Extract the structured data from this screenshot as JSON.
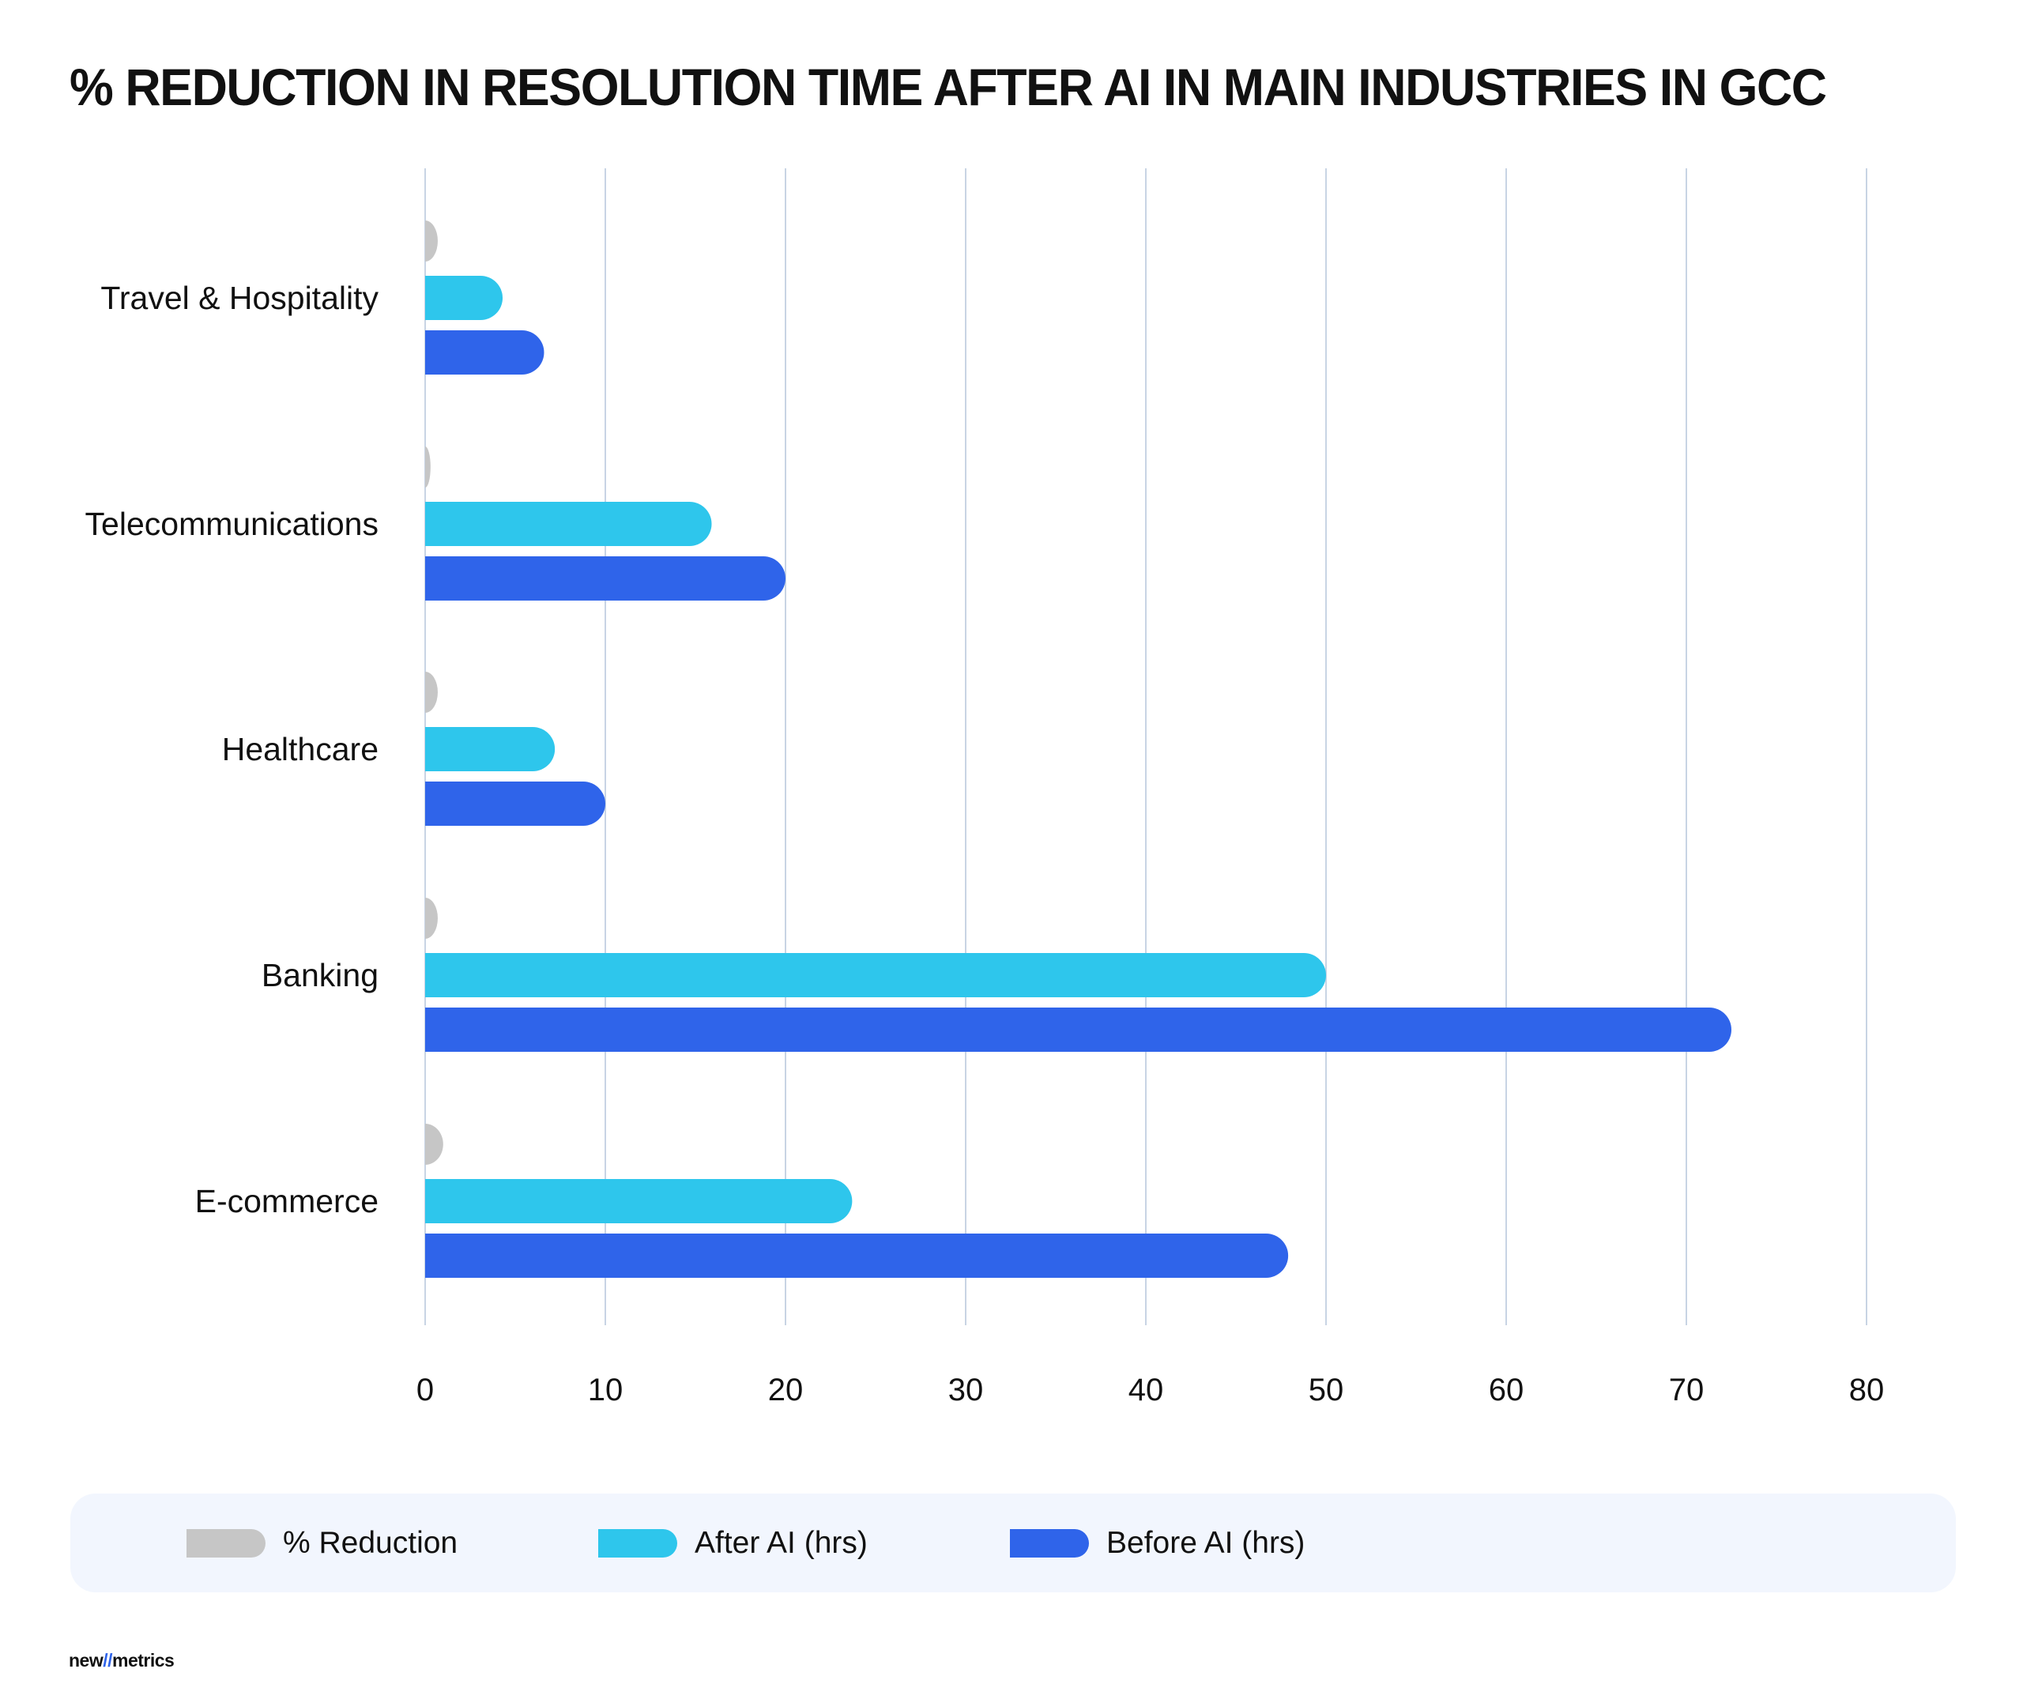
{
  "title": "% REDUCTION IN RESOLUTION TIME AFTER AI IN MAIN INDUSTRIES IN GCC",
  "chart_data": {
    "type": "bar",
    "orientation": "horizontal",
    "title": "% REDUCTION IN RESOLUTION TIME AFTER AI IN MAIN INDUSTRIES IN GCC",
    "categories": [
      "Travel & Hospitality",
      "Telecommunications",
      "Healthcare",
      "Banking",
      "E-commerce"
    ],
    "series": [
      {
        "name": "% Reduction",
        "color": "#c6c6c6",
        "values": [
          0.7,
          0.3,
          0.7,
          0.7,
          1.0
        ]
      },
      {
        "name": "After AI (hrs)",
        "color": "#2ec6ec",
        "values": [
          4.3,
          15.9,
          7.2,
          50,
          23.7
        ]
      },
      {
        "name": "Before AI (hrs)",
        "color": "#2f64ea",
        "values": [
          6.6,
          20,
          10,
          72.5,
          47.9
        ]
      }
    ],
    "xlim": [
      0,
      80
    ],
    "xticks": [
      "0",
      "10",
      "20",
      "30",
      "40",
      "50",
      "60",
      "70",
      "80"
    ],
    "grid": true,
    "legend_position": "bottom"
  },
  "legend": [
    {
      "label": "% Reduction",
      "color": "#c6c6c6"
    },
    {
      "label": "After AI (hrs)",
      "color": "#2ec6ec"
    },
    {
      "label": "Before AI (hrs)",
      "color": "#2f64ea"
    }
  ],
  "logo": {
    "left": "new",
    "slash": "//",
    "right": "metrics"
  }
}
